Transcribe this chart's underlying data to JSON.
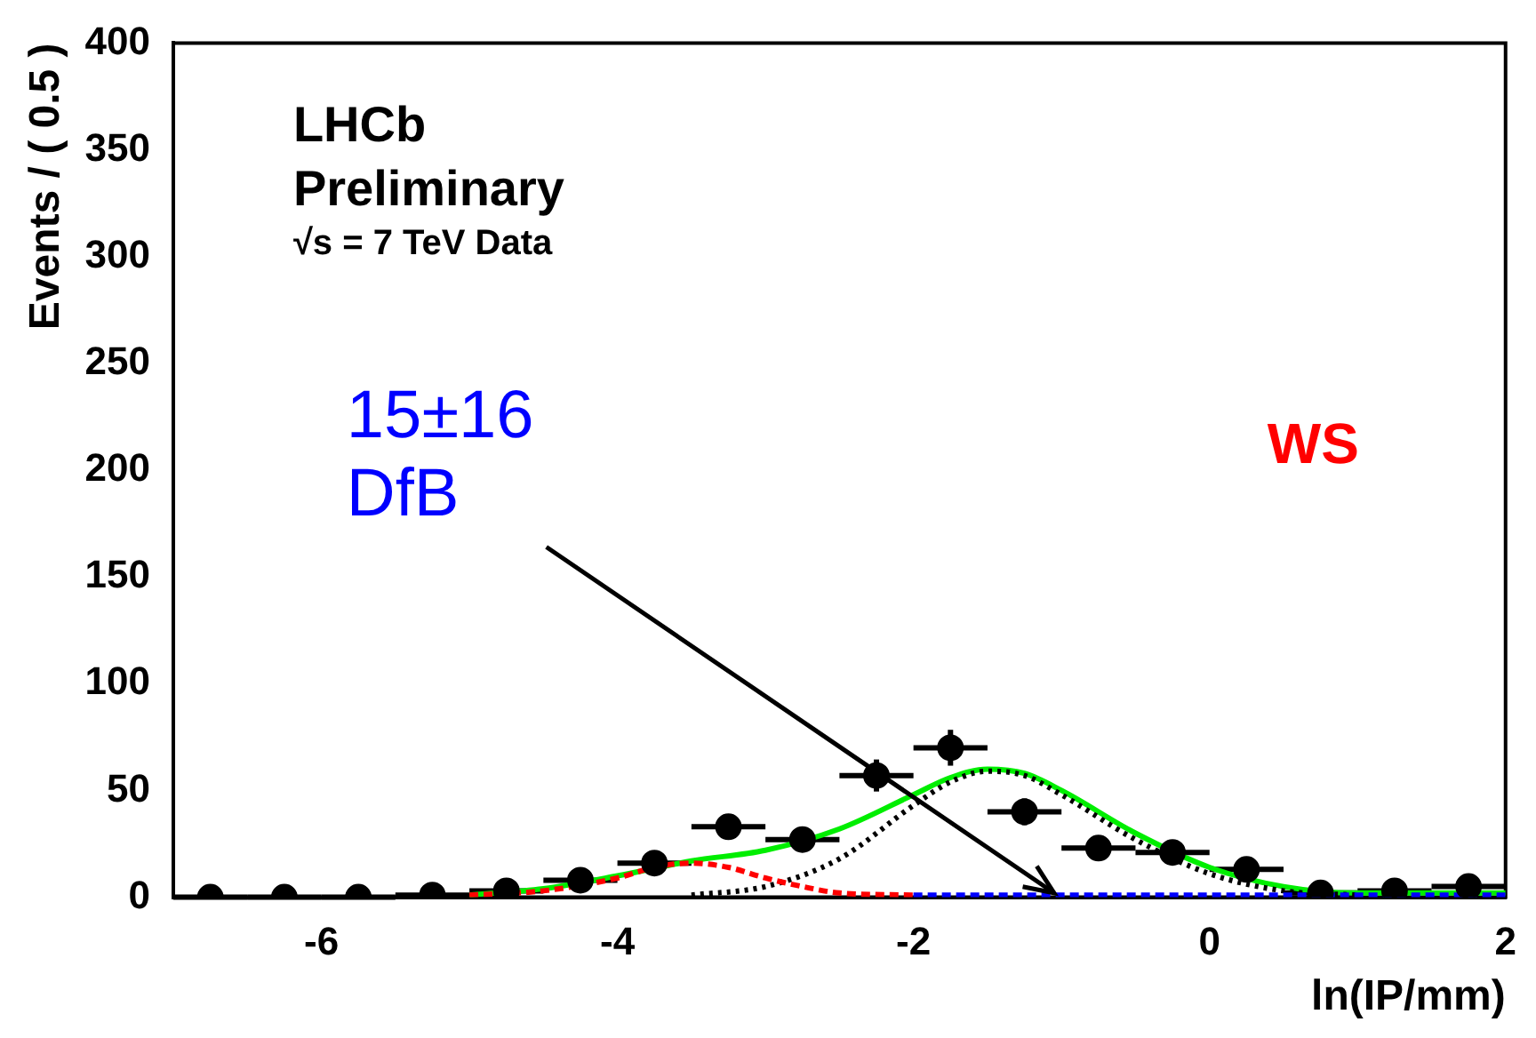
{
  "chart_data": {
    "type": "scatter",
    "xlabel": "ln(IP/mm)",
    "ylabel": "Events / ( 0.5 )",
    "xlim": [
      -7,
      2
    ],
    "xticks": [
      -6,
      -4,
      -2,
      0,
      2
    ],
    "ylim": [
      0,
      400
    ],
    "yticks": [
      0,
      50,
      100,
      150,
      200,
      250,
      300,
      350,
      400
    ],
    "grid": false,
    "legend": false,
    "series": [
      {
        "type": "line",
        "marker": "none",
        "color": "#00ee00",
        "line_style": "solid",
        "x": [
          -5,
          -4.5,
          -4,
          -3.5,
          -3,
          -2.5,
          -2,
          -1.75,
          -1.5,
          -1.25,
          -1,
          -0.5,
          0,
          0.5,
          1,
          1.5,
          2
        ],
        "values": [
          1,
          4,
          10,
          17,
          22,
          32,
          48,
          56,
          60,
          58,
          50,
          30,
          14,
          5,
          2,
          2,
          2
        ]
      },
      {
        "type": "line",
        "marker": "none",
        "color": "#000000",
        "line_style": "dotted",
        "x": [
          -3.5,
          -3,
          -2.5,
          -2,
          -1.75,
          -1.5,
          -1.25,
          -1,
          -0.5,
          0,
          0.5,
          1
        ],
        "values": [
          1,
          5,
          18,
          43,
          54,
          59,
          57,
          48,
          27,
          11,
          3,
          1
        ]
      },
      {
        "type": "line",
        "marker": "none",
        "color": "#ff0000",
        "line_style": "dashed",
        "x": [
          -5,
          -4.5,
          -4,
          -3.75,
          -3.5,
          -3.25,
          -3,
          -2.75,
          -2.5,
          -2
        ],
        "values": [
          1,
          3,
          9,
          14,
          16,
          14,
          9,
          5,
          2,
          1
        ]
      },
      {
        "type": "line",
        "marker": "none",
        "color": "#0000ff",
        "line_style": "dashed",
        "x": [
          -2,
          -1,
          0,
          1,
          2
        ],
        "values": [
          1,
          1,
          1,
          1,
          1
        ]
      },
      {
        "type": "scatter",
        "marker": "circle",
        "color": "#000000",
        "x": [
          -6.75,
          -6.25,
          -5.75,
          -5.25,
          -4.75,
          -4.25,
          -3.75,
          -3.25,
          -2.75,
          -2.25,
          -1.75,
          -1.25,
          -0.75,
          -0.25,
          0.25,
          0.75,
          1.25,
          1.75
        ],
        "values": [
          0,
          0,
          0,
          1,
          3,
          8,
          16,
          33,
          27,
          57,
          70,
          40,
          23,
          21,
          13,
          2,
          3,
          5
        ],
        "errors": [
          null,
          null,
          null,
          1,
          1.7,
          2.8,
          4,
          5.7,
          5.2,
          7.5,
          8.4,
          6.3,
          4.8,
          4.6,
          3.6,
          1.4,
          1.7,
          2.2
        ],
        "xerrors": [
          0.25,
          0.25,
          0.25,
          0.25,
          0.25,
          0.25,
          0.25,
          0.25,
          0.25,
          0.25,
          0.25,
          0.25,
          0.25,
          0.25,
          0.25,
          0.25,
          0.25,
          0.25
        ]
      }
    ],
    "annotations": [
      "LHCb",
      "Preliminary",
      "√s = 7 TeV Data",
      "WS",
      {
        "text": "15±16 DfB",
        "x": -1.05,
        "y": 2
      }
    ]
  }
}
